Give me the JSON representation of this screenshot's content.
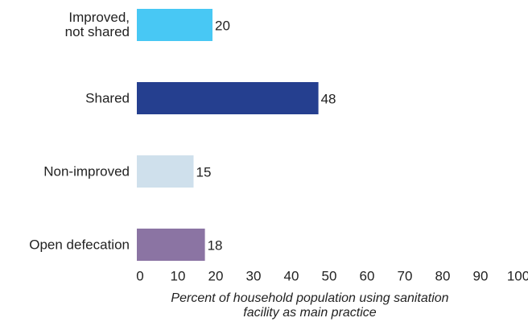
{
  "chart_data": {
    "type": "bar",
    "orientation": "horizontal",
    "categories": [
      "Improved,\nnot shared",
      "Shared",
      "Non-improved",
      "Open defecation"
    ],
    "values": [
      20,
      48,
      15,
      18
    ],
    "colors": [
      "#48c8f4",
      "#253f8f",
      "#cfe0ec",
      "#8b74a3"
    ],
    "xlabel": "Percent of household population using sanitation\nfacility as main practice",
    "xlim": [
      0,
      100
    ],
    "xticks": [
      0,
      10,
      20,
      30,
      40,
      50,
      60,
      70,
      80,
      90,
      100
    ],
    "grid": false
  }
}
